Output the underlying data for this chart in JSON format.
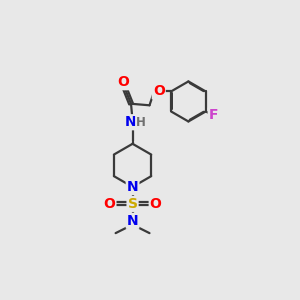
{
  "bg_color": "#e8e8e8",
  "bond_color": "#3a3a3a",
  "bond_width": 1.6,
  "atom_colors": {
    "O": "#ff0000",
    "N": "#0000ee",
    "S": "#ccaa00",
    "F": "#cc44cc",
    "C": "#3a3a3a",
    "H": "#707070"
  },
  "font_size_atom": 10,
  "font_size_small": 8.5
}
